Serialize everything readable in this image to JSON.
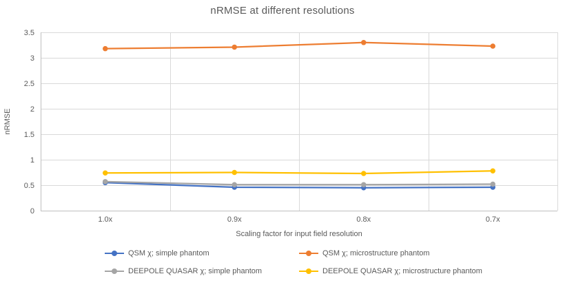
{
  "chart_data": {
    "type": "line",
    "title": "nRMSE at different resolutions",
    "categories": [
      "1.0x",
      "0.9x",
      "0.8x",
      "0.7x"
    ],
    "series": [
      {
        "name": "QSM χ; simple phantom",
        "color": "#4472C4",
        "values": [
          0.55,
          0.46,
          0.45,
          0.46
        ]
      },
      {
        "name": "QSM χ; microstructure phantom",
        "color": "#ED7D31",
        "values": [
          3.18,
          3.21,
          3.3,
          3.23
        ]
      },
      {
        "name": "DEEPOLE QUASAR χ; simple phantom",
        "color": "#A5A5A5",
        "values": [
          0.57,
          0.51,
          0.51,
          0.52
        ]
      },
      {
        "name": "DEEPOLE QUASAR χ; microstructure phantom",
        "color": "#FFC000",
        "values": [
          0.74,
          0.75,
          0.73,
          0.78
        ]
      }
    ],
    "xlabel": "Scaling factor for input field resolution",
    "ylabel": "nRMSE",
    "ylim": [
      0,
      3.5
    ],
    "ytick_step": 0.5,
    "yticks": [
      "0",
      "0.5",
      "1",
      "1.5",
      "2",
      "2.5",
      "3",
      "3.5"
    ],
    "grid": true,
    "legend_position": "bottom",
    "marker": "circle",
    "colors": {
      "text": "#595959",
      "gridline": "#D9D9D9",
      "axis": "#BFBFBF",
      "background": "#FFFFFF"
    }
  }
}
